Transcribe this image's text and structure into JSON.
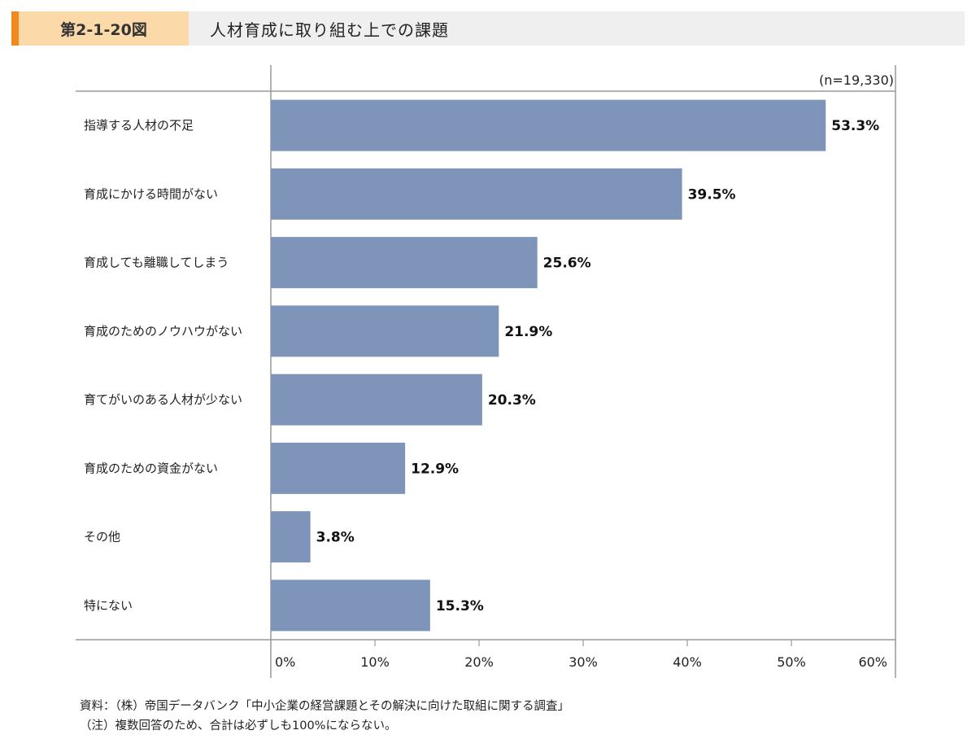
{
  "header": {
    "figure_number": "第2-1-20図",
    "title": "人材育成に取り組む上での課題"
  },
  "chart_data": {
    "type": "bar",
    "orientation": "horizontal",
    "title": "人材育成に取り組む上での課題",
    "sample_size": "(n=19,330)",
    "categories": [
      "指導する人材の不足",
      "育成にかける時間がない",
      "育成しても離職してしまう",
      "育成のためのノウハウがない",
      "育てがいのある人材が少ない",
      "育成のための資金がない",
      "その他",
      "特にない"
    ],
    "values": [
      53.3,
      39.5,
      25.6,
      21.9,
      20.3,
      12.9,
      3.8,
      15.3
    ],
    "value_labels": [
      "53.3%",
      "39.5%",
      "25.6%",
      "21.9%",
      "20.3%",
      "12.9%",
      "3.8%",
      "15.3%"
    ],
    "xlim": [
      0,
      60
    ],
    "ticks": [
      0,
      10,
      20,
      30,
      40,
      50,
      60
    ],
    "tick_labels": [
      "0%",
      "10%",
      "20%",
      "30%",
      "40%",
      "50%",
      "60%"
    ],
    "bar_color": "#7f94b9",
    "grid": false,
    "legend": "none"
  },
  "notes": {
    "source": "資料：（株）帝国データバンク「中小企業の経営課題とその解決に向けた取組に関する調査」",
    "note": "（注）複数回答のため、合計は必ずしも100%にならない。"
  }
}
